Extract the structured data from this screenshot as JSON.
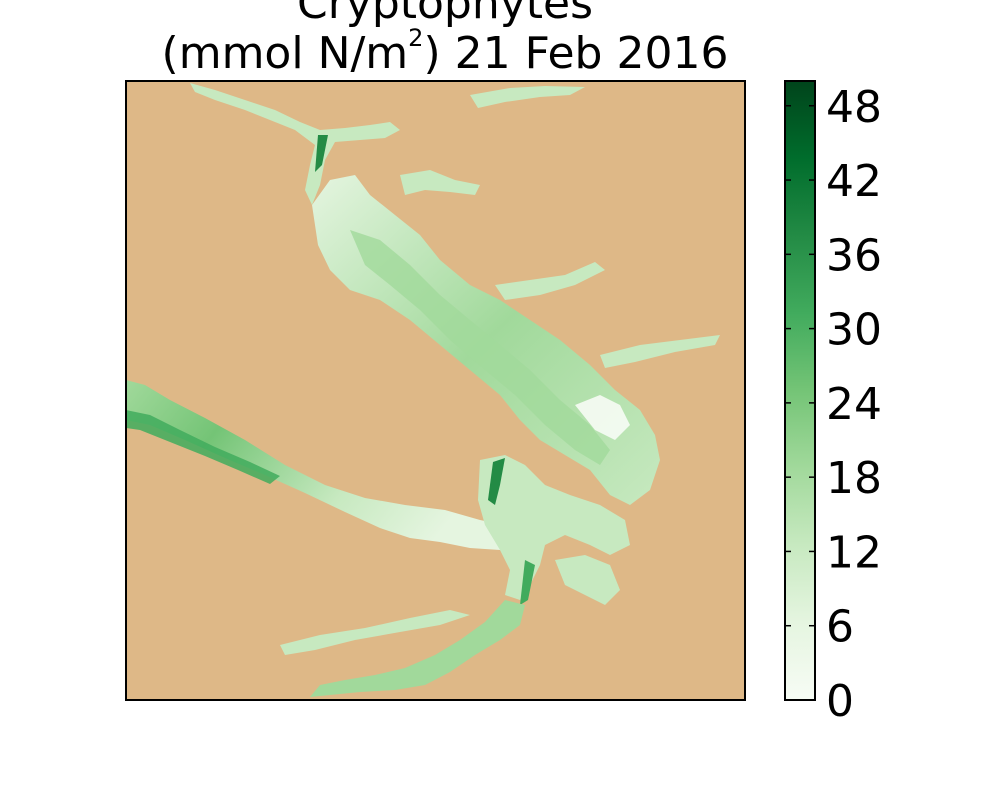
{
  "title": {
    "line1": "Cryptophytes",
    "line2_prefix": "(mmol N/m",
    "line2_sup": "2",
    "line2_suffix": ") 21 Feb 2016"
  },
  "colors": {
    "land": "#deb887",
    "water_low": "#f7fcf5",
    "water_high": "#00441b",
    "frame": "#000000"
  },
  "colorbar": {
    "colormap": "Greens",
    "min": 0,
    "max": 50,
    "ticks": [
      "0",
      "6",
      "12",
      "18",
      "24",
      "30",
      "36",
      "42",
      "48"
    ]
  }
}
